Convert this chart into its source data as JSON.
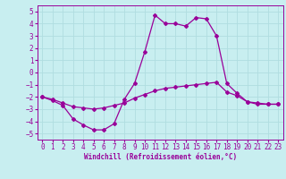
{
  "xlabel": "Windchill (Refroidissement éolien,°C)",
  "background_color": "#c8eef0",
  "grid_color": "#b0dde0",
  "line_color": "#990099",
  "x": [
    0,
    1,
    2,
    3,
    4,
    5,
    6,
    7,
    8,
    9,
    10,
    11,
    12,
    13,
    14,
    15,
    16,
    17,
    18,
    19,
    20,
    21,
    22,
    23
  ],
  "y_main": [
    -2.0,
    -2.3,
    -2.7,
    -3.8,
    -4.3,
    -4.7,
    -4.7,
    -4.2,
    -2.2,
    -0.9,
    1.7,
    4.7,
    4.0,
    4.0,
    3.8,
    4.5,
    4.4,
    3.0,
    -0.9,
    -1.7,
    -2.4,
    -2.6,
    -2.6,
    -2.6
  ],
  "y_upper": [
    -2.0,
    -2.2,
    -2.5,
    -2.8,
    -2.9,
    -3.0,
    -2.9,
    -2.7,
    -2.5,
    -2.1,
    -1.8,
    -1.5,
    -1.3,
    -1.2,
    -1.1,
    -1.0,
    -0.9,
    -0.8,
    -1.6,
    -1.9,
    -2.4,
    -2.5,
    -2.6,
    -2.6
  ],
  "ylim": [
    -5.5,
    5.5
  ],
  "yticks": [
    -5,
    -4,
    -3,
    -2,
    -1,
    0,
    1,
    2,
    3,
    4,
    5
  ],
  "xticks": [
    0,
    1,
    2,
    3,
    4,
    5,
    6,
    7,
    8,
    9,
    10,
    11,
    12,
    13,
    14,
    15,
    16,
    17,
    18,
    19,
    20,
    21,
    22,
    23
  ]
}
